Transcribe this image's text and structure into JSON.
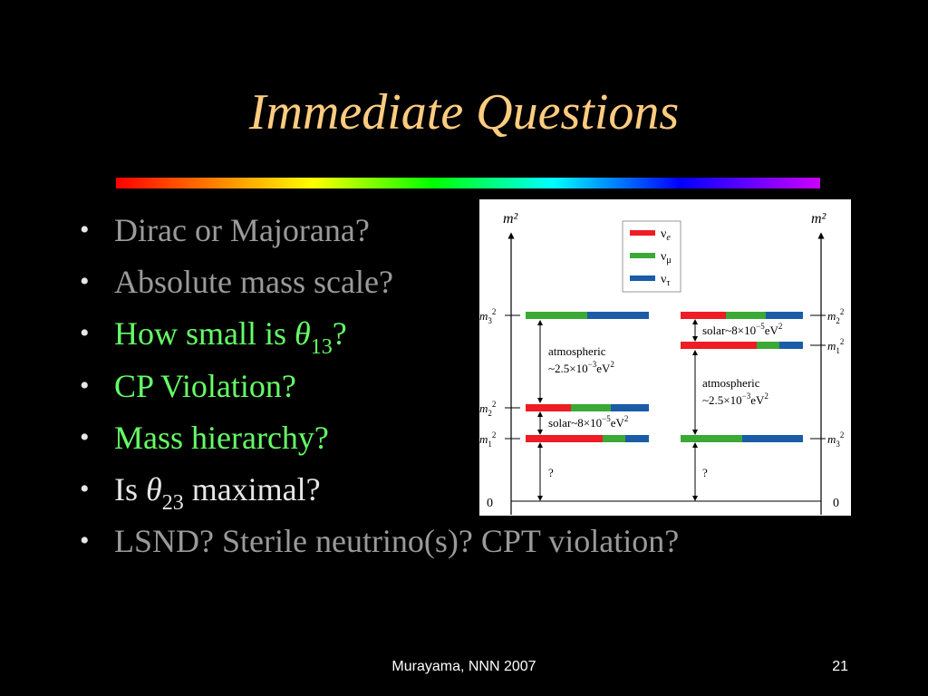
{
  "slide": {
    "title": "Immediate Questions",
    "bullets": [
      {
        "text": "Dirac or Majorana?",
        "color": "gray"
      },
      {
        "text": "Absolute mass scale?",
        "color": "gray"
      },
      {
        "pre": "How small is ",
        "symbol": "θ",
        "sub": "13",
        "post": "?",
        "color": "green"
      },
      {
        "text": "CP Violation?",
        "color": "green"
      },
      {
        "text": "Mass hierarchy?",
        "color": "green"
      },
      {
        "pre": "Is ",
        "symbol": "θ",
        "sub": "23",
        "post": " maximal?",
        "color": "white"
      },
      {
        "text": "LSND? Sterile neutrino(s)? CPT violation?",
        "color": "gray"
      }
    ],
    "bullet_char": "•",
    "footer_center": "Murayama, NNN 2007",
    "page_number": "21"
  },
  "diagram": {
    "axis_label_left": "m²",
    "axis_label_right": "m²",
    "zero_left": "0",
    "zero_right": "0",
    "legend": [
      {
        "label": "ν",
        "sub": "e",
        "color": "#ee1c24"
      },
      {
        "label": "ν",
        "sub": "μ",
        "color": "#3aa935"
      },
      {
        "label": "ν",
        "sub": "τ",
        "color": "#1a5ca8"
      }
    ],
    "left_levels": {
      "top": "m",
      "top_sub": "3",
      "top_sup": "2",
      "mid": "m",
      "mid_sub": "2",
      "mid_sup": "2",
      "bot": "m",
      "bot_sub": "1",
      "bot_sup": "2"
    },
    "right_levels": {
      "top": "m",
      "top_sub": "2",
      "top_sup": "2",
      "mid": "m",
      "mid_sub": "1",
      "mid_sup": "2",
      "bot": "m",
      "bot_sub": "3",
      "bot_sup": "2"
    },
    "atm_line1": "atmospheric",
    "atm_line2": "~2.5×10",
    "atm_exp": "−3",
    "atm_unit": "eV",
    "atm_unit_exp": "2",
    "solar_text": "solar~8×10",
    "solar_exp": "−5",
    "solar_unit": "eV",
    "solar_unit_exp": "2",
    "unknown": "?"
  }
}
